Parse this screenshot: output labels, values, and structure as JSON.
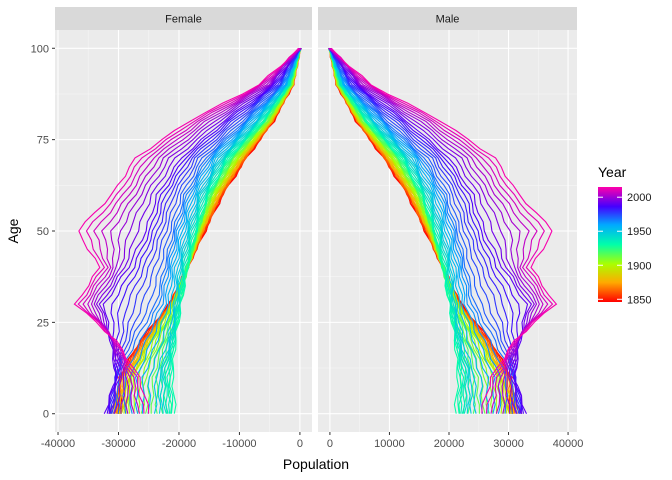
{
  "chart_data": {
    "type": "line",
    "title": "",
    "xlabel": "Population",
    "ylabel": "Age",
    "facets": [
      {
        "name": "Female",
        "xlim": [
          -40500,
          2000
        ],
        "xticks": [
          -40000,
          -30000,
          -20000,
          -10000,
          0
        ],
        "xtick_labels": [
          "-40000",
          "-30000",
          "-20000",
          "-10000",
          "0"
        ]
      },
      {
        "name": "Male",
        "xlim": [
          -2000,
          41500
        ],
        "xticks": [
          0,
          10000,
          20000,
          30000,
          40000
        ],
        "xtick_labels": [
          "0",
          "10000",
          "20000",
          "30000",
          "40000"
        ]
      }
    ],
    "ylim": [
      -5,
      105
    ],
    "yticks": [
      0,
      25,
      50,
      75,
      100
    ],
    "ytick_labels": [
      "0",
      "25",
      "50",
      "75",
      "100"
    ],
    "legend": {
      "title": "Year",
      "position": "right",
      "range": [
        1846,
        2015
      ],
      "ticks": [
        1850,
        1900,
        1950,
        2000
      ],
      "tick_labels": [
        "1850",
        "1900",
        "1950",
        "2000"
      ]
    },
    "year_range": [
      1846,
      2015
    ],
    "year_step": 3,
    "profiles": [
      {
        "year": 1846,
        "points": [
          [
            0,
            30000
          ],
          [
            10,
            30500
          ],
          [
            20,
            27000
          ],
          [
            30,
            22000
          ],
          [
            40,
            19000
          ],
          [
            50,
            16000
          ],
          [
            60,
            13000
          ],
          [
            70,
            9000
          ],
          [
            80,
            4500
          ],
          [
            90,
            1200
          ],
          [
            100,
            0
          ]
        ]
      },
      {
        "year": 1870,
        "points": [
          [
            0,
            32000
          ],
          [
            10,
            30000
          ],
          [
            20,
            26000
          ],
          [
            30,
            21500
          ],
          [
            40,
            19000
          ],
          [
            50,
            16500
          ],
          [
            60,
            13500
          ],
          [
            70,
            9500
          ],
          [
            80,
            4800
          ],
          [
            90,
            1300
          ],
          [
            100,
            0
          ]
        ]
      },
      {
        "year": 1900,
        "points": [
          [
            0,
            29000
          ],
          [
            10,
            28000
          ],
          [
            20,
            25000
          ],
          [
            30,
            21500
          ],
          [
            40,
            19000
          ],
          [
            50,
            17000
          ],
          [
            60,
            14500
          ],
          [
            70,
            10500
          ],
          [
            80,
            5200
          ],
          [
            90,
            1400
          ],
          [
            100,
            0
          ]
        ]
      },
      {
        "year": 1930,
        "points": [
          [
            0,
            21000
          ],
          [
            10,
            21500
          ],
          [
            20,
            21000
          ],
          [
            30,
            20000
          ],
          [
            40,
            19000
          ],
          [
            50,
            17500
          ],
          [
            60,
            15500
          ],
          [
            70,
            12000
          ],
          [
            80,
            6200
          ],
          [
            90,
            1800
          ],
          [
            100,
            0
          ]
        ]
      },
      {
        "year": 1950,
        "points": [
          [
            0,
            24000
          ],
          [
            10,
            24000
          ],
          [
            20,
            22000
          ],
          [
            30,
            21000
          ],
          [
            40,
            20500
          ],
          [
            50,
            19000
          ],
          [
            60,
            17000
          ],
          [
            70,
            13500
          ],
          [
            80,
            7500
          ],
          [
            90,
            2200
          ],
          [
            100,
            0
          ]
        ]
      },
      {
        "year": 1970,
        "points": [
          [
            0,
            31000
          ],
          [
            10,
            31000
          ],
          [
            20,
            28000
          ],
          [
            30,
            24500
          ],
          [
            40,
            23000
          ],
          [
            50,
            21500
          ],
          [
            60,
            19500
          ],
          [
            70,
            16000
          ],
          [
            80,
            9500
          ],
          [
            90,
            3000
          ],
          [
            100,
            0
          ]
        ]
      },
      {
        "year": 1990,
        "points": [
          [
            0,
            33000
          ],
          [
            10,
            31000
          ],
          [
            20,
            32000
          ],
          [
            30,
            33000
          ],
          [
            40,
            29000
          ],
          [
            50,
            26000
          ],
          [
            60,
            24000
          ],
          [
            70,
            20000
          ],
          [
            80,
            13000
          ],
          [
            90,
            4500
          ],
          [
            100,
            0
          ]
        ]
      },
      {
        "year": 2015,
        "points": [
          [
            0,
            25000
          ],
          [
            10,
            27000
          ],
          [
            20,
            31000
          ],
          [
            30,
            38000
          ],
          [
            40,
            34000
          ],
          [
            50,
            38000
          ],
          [
            60,
            32000
          ],
          [
            70,
            28000
          ],
          [
            80,
            19000
          ],
          [
            90,
            7000
          ],
          [
            100,
            0
          ]
        ]
      }
    ]
  }
}
